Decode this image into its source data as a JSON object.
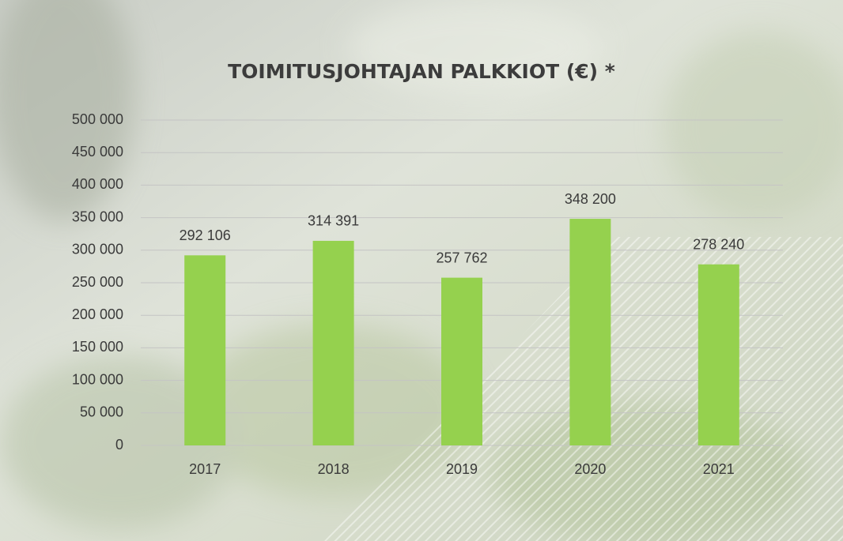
{
  "chart_data": {
    "type": "bar",
    "title": "TOIMITUSJOHTAJAN PALKKIOT (€) *",
    "categories": [
      "2017",
      "2018",
      "2019",
      "2020",
      "2021"
    ],
    "values": [
      292106,
      314391,
      257762,
      348200,
      278240
    ],
    "value_labels": [
      "292 106",
      "314 391",
      "257 762",
      "348 200",
      "278 240"
    ],
    "color": "#95d14e",
    "ylim": [
      0,
      500000
    ],
    "yticks": [
      0,
      {
        "value": 50000,
        "label": "50 000"
      },
      {
        "value": 100000,
        "label": "100 000"
      },
      {
        "value": 150000,
        "label": "150 000"
      },
      {
        "value": 200000,
        "label": "200 000"
      },
      {
        "value": 250000,
        "label": "250 000"
      },
      {
        "value": 300000,
        "label": "300 000"
      },
      {
        "value": 350000,
        "label": "350 000"
      },
      {
        "value": 400000,
        "label": "400 000"
      },
      {
        "value": 450000,
        "label": "450 000"
      },
      {
        "value": 500000,
        "label": "500 000"
      }
    ],
    "grid": true
  }
}
